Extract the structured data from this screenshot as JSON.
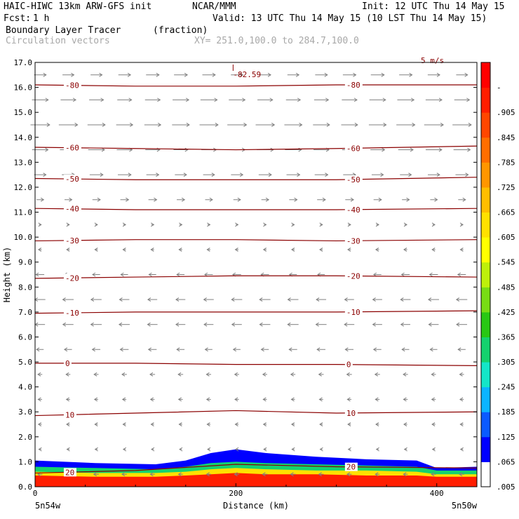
{
  "header": {
    "model": "HAIC-HIWC 13km ARW-GFS init",
    "org": "NCAR/MMM",
    "init": "Init: 12 UTC Thu 14 May 15",
    "fcst_label": "Fcst:",
    "fcst_value": "1 h",
    "valid": "Valid: 13 UTC Thu 14 May 15 (10 LST Thu 14 May 15)",
    "field_name": "Boundary Layer Tracer",
    "field_units": "(fraction)",
    "vector_label": "Circulation vectors",
    "xy_label": "XY= 251.0,100.0 to 284.7,100.0",
    "max_label": "-82.59",
    "ref_vector_label": "5 m/s"
  },
  "chart_data": {
    "type": "heatmap",
    "title": "Boundary Layer Tracer",
    "units": "(fraction)",
    "xlabel": "Distance (km)",
    "ylabel": "Height (km)",
    "xlim": [
      0,
      440
    ],
    "ylim": [
      0,
      17
    ],
    "x_ticks": [
      0,
      200,
      400
    ],
    "y_ticks": [
      "0.0",
      "1.0",
      "2.0",
      "3.0",
      "4.0",
      "5.0",
      "6.0",
      "7.0",
      "8.0",
      "9.0",
      "10.0",
      "11.0",
      "12.0",
      "13.0",
      "14.0",
      "15.0",
      "16.0",
      "17.0"
    ],
    "x_endpoints": [
      "5n54w",
      "5n50w"
    ],
    "colorbar": {
      "labels": [
        ".005",
        ".065",
        ".125",
        ".185",
        ".245",
        ".305",
        ".365",
        ".425",
        ".485",
        ".545",
        ".605",
        ".665",
        ".725",
        ".785",
        ".845",
        ".905",
        "-"
      ],
      "colors": [
        "#ffffff",
        "#0000ff",
        "#0a5aff",
        "#0ab4ff",
        "#14e6c8",
        "#14d26e",
        "#28c814",
        "#78dc14",
        "#bef00a",
        "#ffff00",
        "#ffe100",
        "#ffbe00",
        "#ff9600",
        "#ff6e00",
        "#ff4600",
        "#ff1e00",
        "#ff0000"
      ]
    },
    "temperature_contours": [
      {
        "label": "20",
        "level": 20,
        "x": [
          0,
          100,
          200,
          300,
          440
        ],
        "y": [
          0.55,
          0.65,
          0.9,
          0.8,
          0.75
        ]
      },
      {
        "label": "10",
        "level": 10,
        "x": [
          0,
          100,
          200,
          300,
          440
        ],
        "y": [
          2.85,
          2.95,
          3.05,
          2.95,
          3.0
        ]
      },
      {
        "label": "0",
        "level": 0,
        "x": [
          0,
          100,
          200,
          300,
          440
        ],
        "y": [
          4.95,
          4.95,
          4.9,
          4.9,
          4.85
        ]
      },
      {
        "label": "-10",
        "level": -10,
        "x": [
          0,
          100,
          200,
          300,
          440
        ],
        "y": [
          6.95,
          7.0,
          7.0,
          7.0,
          7.05
        ]
      },
      {
        "label": "-20",
        "level": -20,
        "x": [
          0,
          100,
          200,
          300,
          440
        ],
        "y": [
          8.35,
          8.4,
          8.45,
          8.45,
          8.4
        ]
      },
      {
        "label": "-30",
        "level": -30,
        "x": [
          0,
          100,
          200,
          300,
          440
        ],
        "y": [
          9.85,
          9.9,
          9.9,
          9.85,
          9.9
        ]
      },
      {
        "label": "-40",
        "level": -40,
        "x": [
          0,
          100,
          200,
          300,
          440
        ],
        "y": [
          11.15,
          11.1,
          11.1,
          11.1,
          11.15
        ]
      },
      {
        "label": "-50",
        "level": -50,
        "x": [
          0,
          100,
          200,
          300,
          440
        ],
        "y": [
          12.35,
          12.3,
          12.3,
          12.3,
          12.4
        ]
      },
      {
        "label": "-60",
        "level": -60,
        "x": [
          0,
          100,
          200,
          300,
          440
        ],
        "y": [
          13.6,
          13.55,
          13.5,
          13.55,
          13.65
        ]
      },
      {
        "label": "-80",
        "level": -80,
        "x": [
          0,
          100,
          200,
          300,
          440
        ],
        "y": [
          16.1,
          16.05,
          16.05,
          16.1,
          16.1
        ]
      }
    ],
    "tracer_layers": [
      {
        "value": 0.065,
        "x": [
          0,
          60,
          120,
          150,
          175,
          200,
          230,
          280,
          330,
          380,
          400,
          440
        ],
        "top": [
          1.05,
          0.95,
          0.9,
          1.05,
          1.35,
          1.5,
          1.35,
          1.2,
          1.1,
          1.05,
          0.75,
          0.8
        ]
      },
      {
        "value": 0.305,
        "x": [
          0,
          60,
          120,
          150,
          175,
          200,
          230,
          280,
          330,
          380,
          400,
          440
        ],
        "top": [
          0.8,
          0.75,
          0.7,
          0.8,
          0.95,
          1.0,
          0.95,
          0.9,
          0.85,
          0.8,
          0.65,
          0.65
        ]
      },
      {
        "value": 0.605,
        "x": [
          0,
          60,
          120,
          150,
          175,
          200,
          230,
          280,
          330,
          380,
          400,
          440
        ],
        "top": [
          0.6,
          0.55,
          0.55,
          0.6,
          0.7,
          0.75,
          0.7,
          0.65,
          0.65,
          0.6,
          0.5,
          0.5
        ]
      },
      {
        "value": 0.905,
        "x": [
          0,
          60,
          120,
          150,
          175,
          200,
          230,
          280,
          330,
          380,
          400,
          440
        ],
        "top": [
          0.45,
          0.4,
          0.4,
          0.45,
          0.5,
          0.55,
          0.5,
          0.5,
          0.45,
          0.45,
          0.4,
          0.4
        ]
      }
    ],
    "wind_profile": {
      "heights_km": [
        0.5,
        1.5,
        2.5,
        3.5,
        4.5,
        5.5,
        6.5,
        7.5,
        8.5,
        9.5,
        10.5,
        11.5,
        12.5,
        13.5,
        14.5,
        15.5,
        16.5
      ],
      "u_ms": [
        -1.2,
        -0.6,
        -0.8,
        -1.0,
        -1.2,
        -2.0,
        -2.6,
        -2.6,
        -2.0,
        -0.8,
        0.6,
        2.0,
        3.2,
        4.0,
        4.6,
        4.0,
        3.2
      ]
    }
  }
}
